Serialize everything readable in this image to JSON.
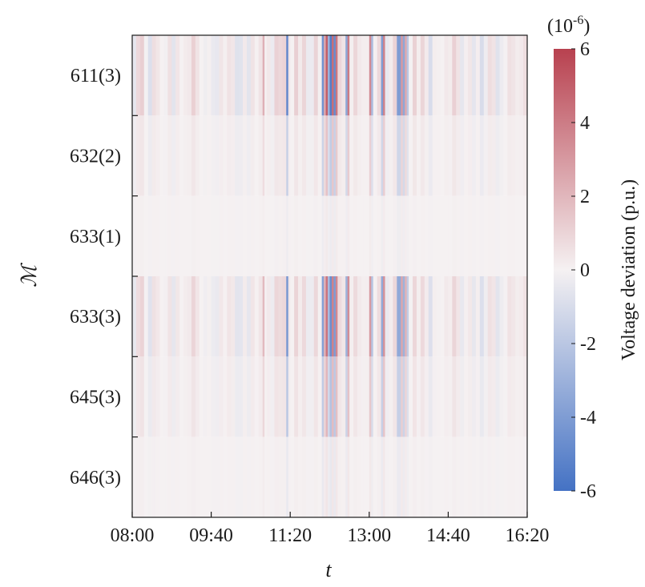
{
  "chart_data": {
    "type": "heatmap",
    "title": "",
    "xlabel": "t",
    "ylabel": "ℳ",
    "x_ticks": [
      "08:00",
      "09:40",
      "11:20",
      "13:00",
      "14:40",
      "16:20"
    ],
    "x_range": [
      "08:00",
      "16:20"
    ],
    "time_step_minutes": 5,
    "rows": [
      "611(3)",
      "632(2)",
      "633(1)",
      "633(3)",
      "645(3)",
      "646(3)"
    ],
    "row_scale": [
      1.0,
      0.32,
      0.05,
      0.85,
      0.4,
      0.08
    ],
    "bursts": [
      {
        "start": "10:45",
        "end": "10:50",
        "values": [
          2.2,
          1.0,
          0.0,
          -1.6
        ]
      },
      {
        "start": "11:15",
        "end": "11:20",
        "values": [
          -5.0,
          2.0,
          0.4,
          -4.5
        ]
      },
      {
        "start": "12:00",
        "end": "12:05",
        "values": [
          -4.5,
          2.5
        ]
      },
      {
        "start": "12:05",
        "end": "12:10",
        "values": [
          5.0,
          -3.0,
          -4.5
        ]
      },
      {
        "start": "12:10",
        "end": "12:20",
        "values": [
          -5.5,
          4.5,
          -4.8,
          4.2
        ]
      },
      {
        "start": "12:30",
        "end": "12:35",
        "values": [
          -3.5,
          4.0
        ]
      },
      {
        "start": "13:00",
        "end": "13:05",
        "values": [
          3.5,
          -2.5
        ]
      },
      {
        "start": "13:15",
        "end": "13:20",
        "values": [
          -4.0,
          3.8
        ]
      },
      {
        "start": "13:35",
        "end": "13:45",
        "values": [
          -4.0,
          3.0,
          -3.5
        ]
      },
      {
        "start": "13:45",
        "end": "13:50",
        "values": [
          2.5,
          -2.0
        ]
      }
    ],
    "background_range": [
      -1.0,
      1.2
    ],
    "colorbar": {
      "label": "Voltage deviation (p.u.)",
      "unit_note": "(10",
      "unit_exponent": "-6",
      "unit_close": ")",
      "min": -6,
      "max": 6,
      "ticks": [
        "6",
        "4",
        "2",
        "0",
        "-2",
        "-4",
        "-6"
      ],
      "colors": {
        "low": "#4472c4",
        "mid": "#f5f1f2",
        "high": "#b8414f"
      }
    },
    "colormap": "diverging blue-white-red"
  }
}
